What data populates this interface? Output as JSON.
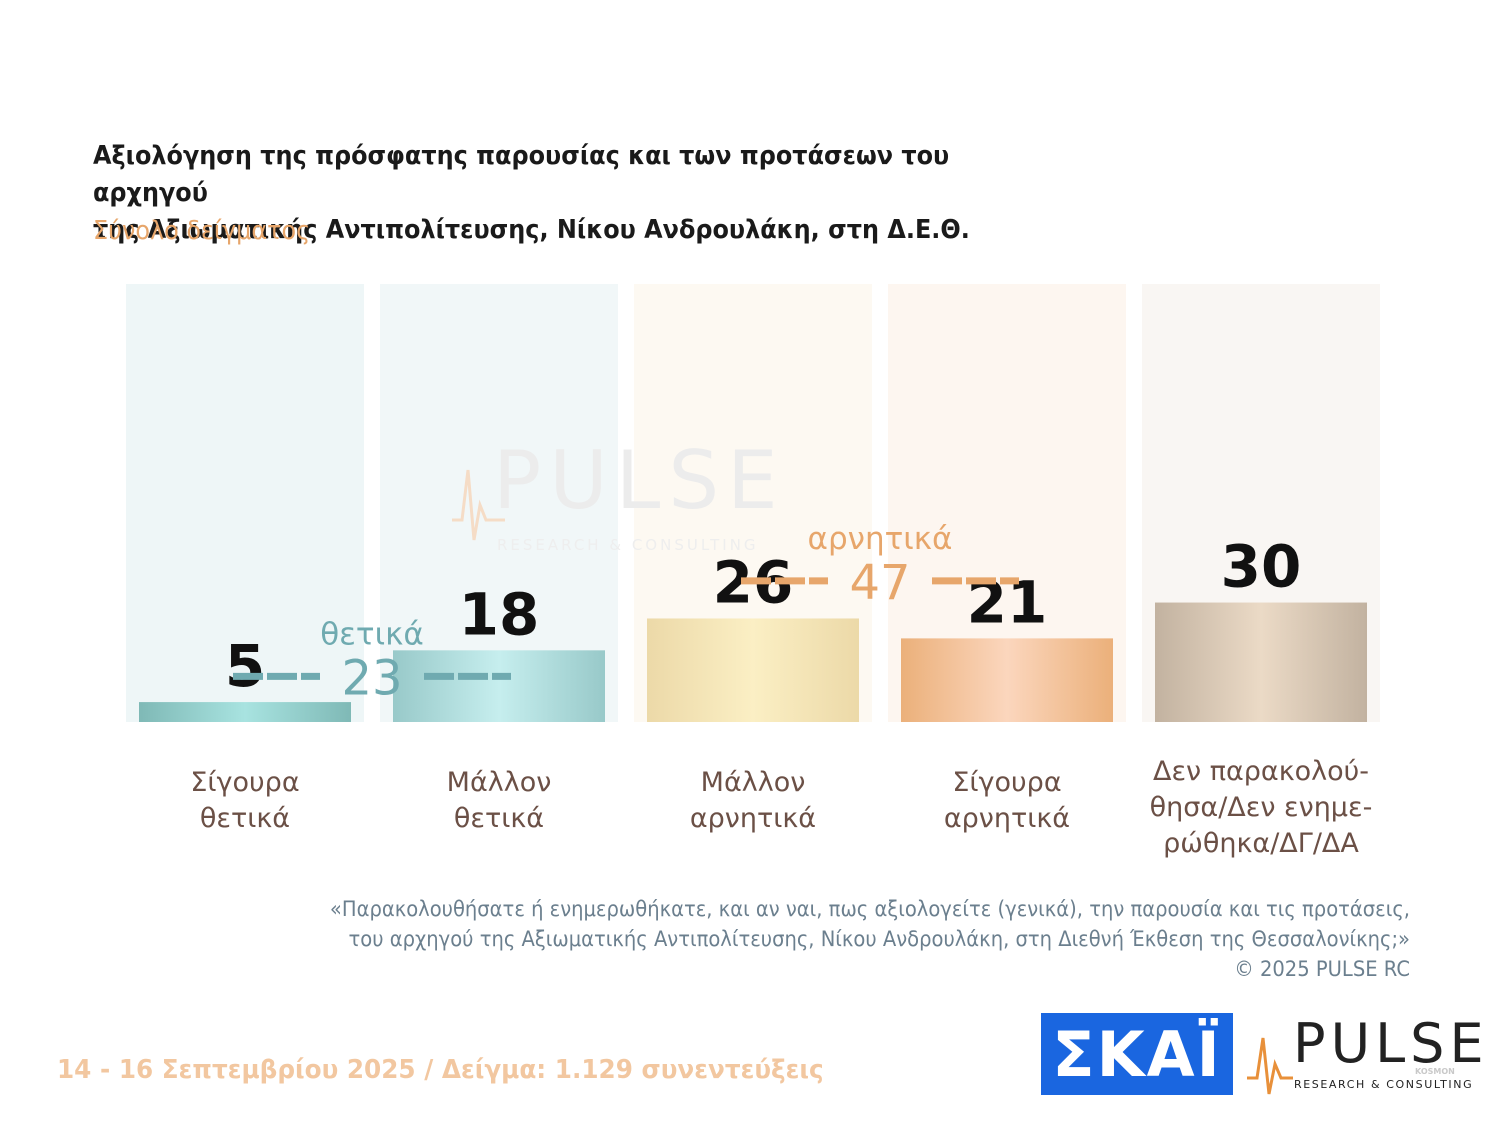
{
  "title_line1": "Αξιολόγηση της πρόσφατης παρουσίας και των προτάσεων του αρχηγού",
  "title_line2": "της Αξιωματικής Αντιπολίτευσης, Νίκου Ανδρουλάκη, στη Δ.Ε.Θ.",
  "subtitle": "Σύνολο δείγματος",
  "chart_data": {
    "type": "bar",
    "categories": [
      [
        "Σίγουρα",
        "θετικά"
      ],
      [
        "Μάλλον",
        "θετικά"
      ],
      [
        "Μάλλον",
        "αρνητικά"
      ],
      [
        "Σίγουρα",
        "αρνητικά"
      ],
      [
        "Δεν παρακολού-",
        "θησα/Δεν ενημε-",
        "ρώθηκα/ΔΓ/ΔΑ"
      ]
    ],
    "values": [
      5,
      18,
      26,
      21,
      30
    ],
    "ylim": [
      0,
      110
    ],
    "grid": false,
    "group_labels": [
      {
        "label": "θετικά",
        "value": 23,
        "spans": [
          0,
          1
        ],
        "color": "#6faab0"
      },
      {
        "label": "αρνητικά",
        "value": 47,
        "spans": [
          2,
          3
        ],
        "color": "#e7a66b"
      }
    ]
  },
  "footnote_line1": "«Παρακολουθήσατε ή ενημερωθήκατε, και αν ναι, πως αξιολογείτε (γενικά), την παρουσία και τις προτάσεις,",
  "footnote_line2": "του αρχηγού της Αξιωματικής Αντιπολίτευσης, Νίκου Ανδρουλάκη, στη Διεθνή Έκθεση της Θεσσαλονίκης;»",
  "copyright": "©  2025  PULSE RC",
  "dateline": "14 - 16 Σεπτεμβρίου 2025  /  Δείγμα:  1.129 συνεντεύξεις",
  "logos": {
    "skai": "ΣΚΑΪ",
    "pulse": "PULSE",
    "pulse_tagline": "RESEARCH & CONSULTING",
    "pulse_sub": "KOSMON"
  },
  "watermark": {
    "word": "PULSE",
    "tagline": "RESEARCH & CONSULTING"
  }
}
